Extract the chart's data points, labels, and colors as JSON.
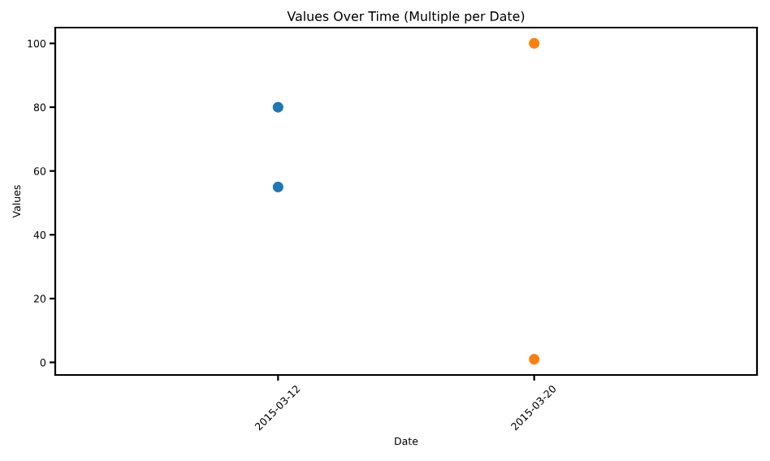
{
  "chart_data": {
    "type": "scatter",
    "title": "Values Over Time (Multiple per Date)",
    "xlabel": "Date",
    "ylabel": "Values",
    "categories": [
      "2015-03-12",
      "2015-03-20"
    ],
    "series": [
      {
        "color": "#1f77b4",
        "values": [
          80,
          null
        ]
      },
      {
        "color": "#1f77b4",
        "values": [
          55,
          null
        ]
      },
      {
        "color": "#ff7f0e",
        "values": [
          null,
          100
        ]
      },
      {
        "color": "#ff7f0e",
        "values": [
          null,
          1
        ]
      }
    ],
    "ylim": [
      -3.95,
      104.95
    ],
    "yticks": [
      0,
      20,
      40,
      60,
      80,
      100
    ],
    "marker": "circle",
    "grid": false
  }
}
